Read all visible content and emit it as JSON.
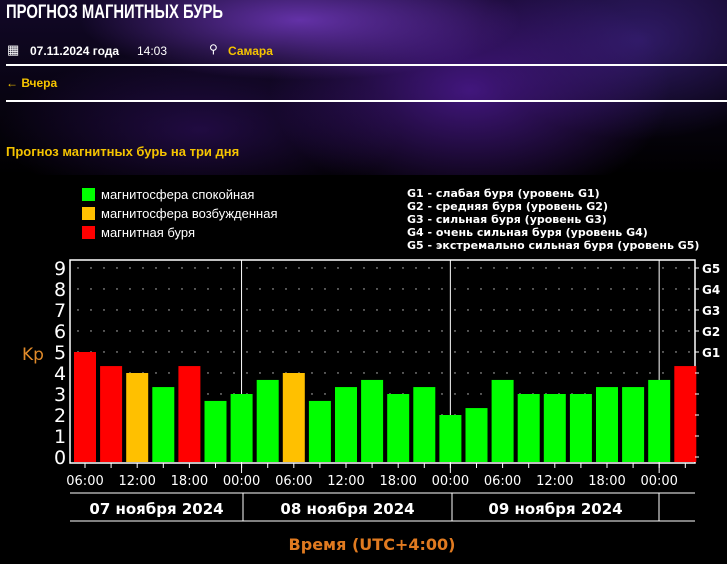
{
  "header": {
    "title": "ПРОГНОЗ МАГНИТНЫХ БУРЬ",
    "date": "07.11.2024 года",
    "time": "14:03",
    "city": "Самара",
    "back_link": "← Вчера"
  },
  "section_title": "Прогноз магнитных бурь на три дня",
  "legend": [
    {
      "label": "магнитосфера спокойная",
      "color": "#00ff00"
    },
    {
      "label": "магнитосфера возбужденная",
      "color": "#ffc000"
    },
    {
      "label": "магнитная буря",
      "color": "#ff0000"
    }
  ],
  "g_levels": [
    "G1 - слабая буря (уровень G1)",
    "G2 - средняя буря (уровень G2)",
    "G3 - сильная буря (уровень G3)",
    "G4 - очень сильная буря (уровень G4)",
    "G5 - экстремально сильная буря (уровень G5)"
  ],
  "chart_data": {
    "type": "bar",
    "ylabel": "Kp",
    "xlabel": "Время (UTC+4:00)",
    "ylim": [
      0,
      9
    ],
    "yticks": [
      "0",
      "1",
      "2",
      "3",
      "4",
      "5",
      "6",
      "7",
      "8",
      "9"
    ],
    "right_ticks": [
      {
        "label": "G1",
        "kp": 5
      },
      {
        "label": "G2",
        "kp": 6
      },
      {
        "label": "G3",
        "kp": 7
      },
      {
        "label": "G4",
        "kp": 8
      },
      {
        "label": "G5",
        "kp": 9
      }
    ],
    "xtick_labels": [
      "06:00",
      "12:00",
      "18:00",
      "00:00",
      "06:00",
      "12:00",
      "18:00",
      "00:00",
      "06:00",
      "12:00",
      "18:00",
      "00:00"
    ],
    "days": [
      "07 ноября 2024",
      "08 ноября 2024",
      "09 ноября 2024"
    ],
    "values": [
      5,
      4.33,
      4,
      3.33,
      4.33,
      2.67,
      3,
      3.67,
      4,
      2.67,
      3.33,
      3.67,
      3,
      3.33,
      2,
      2.33,
      3.67,
      3,
      3,
      3,
      3.33,
      3.33,
      3.67,
      4.33
    ],
    "colors": [
      "#ff0000",
      "#ff0000",
      "#ffc000",
      "#00ff00",
      "#ff0000",
      "#00ff00",
      "#00ff00",
      "#00ff00",
      "#ffc000",
      "#00ff00",
      "#00ff00",
      "#00ff00",
      "#00ff00",
      "#00ff00",
      "#00ff00",
      "#00ff00",
      "#00ff00",
      "#00ff00",
      "#00ff00",
      "#00ff00",
      "#00ff00",
      "#00ff00",
      "#00ff00",
      "#ff0000"
    ],
    "grid": "dotted"
  }
}
